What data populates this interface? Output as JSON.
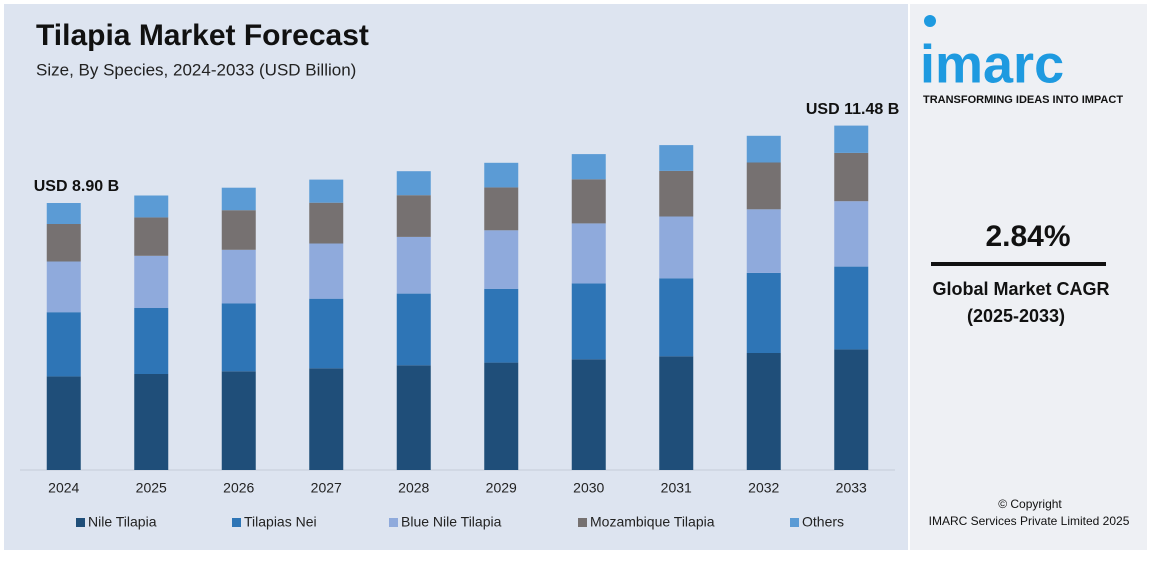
{
  "chart_data": {
    "type": "stacked_bar",
    "title": "Tilapia Market Forecast",
    "subtitle": "Size, By Species, 2024-2033 (USD Billion)",
    "categories": [
      "2024",
      "2025",
      "2026",
      "2027",
      "2028",
      "2029",
      "2030",
      "2031",
      "2032",
      "2033"
    ],
    "series": [
      {
        "name": "Nile Tilapia",
        "color": "#1f4e79",
        "values": [
          3.12,
          3.2,
          3.29,
          3.39,
          3.49,
          3.58,
          3.69,
          3.79,
          3.9,
          4.02
        ]
      },
      {
        "name": "Tilapias Nei",
        "color": "#2e75b6",
        "values": [
          2.14,
          2.2,
          2.26,
          2.32,
          2.39,
          2.46,
          2.53,
          2.6,
          2.67,
          2.76
        ]
      },
      {
        "name": "Blue Nile Tilapia",
        "color": "#8faadc",
        "values": [
          1.69,
          1.74,
          1.79,
          1.84,
          1.89,
          1.95,
          2.0,
          2.06,
          2.12,
          2.18
        ]
      },
      {
        "name": "Mozambique Tilapia",
        "color": "#767171",
        "values": [
          1.25,
          1.28,
          1.32,
          1.36,
          1.39,
          1.43,
          1.47,
          1.52,
          1.56,
          1.61
        ]
      },
      {
        "name": "Others",
        "color": "#5b9bd5",
        "values": [
          0.7,
          0.73,
          0.75,
          0.77,
          0.8,
          0.82,
          0.84,
          0.86,
          0.89,
          0.91
        ]
      }
    ],
    "annotations": [
      {
        "category": "2024",
        "value": 8.9,
        "label": "USD 8.90 B"
      },
      {
        "category": "2033",
        "value": 11.48,
        "label": "USD 11.48 B"
      }
    ],
    "ylim": [
      0,
      12
    ],
    "legend": "bottom"
  },
  "sidebar": {
    "logo": "imarc",
    "tagline": "TRANSFORMING IDEAS INTO IMPACT",
    "cagr": "2.84%",
    "cagr_label": "Global Market CAGR",
    "cagr_period": "(2025-2033)",
    "copyright": "© Copyright",
    "company": "IMARC Services Private Limited 2025"
  }
}
